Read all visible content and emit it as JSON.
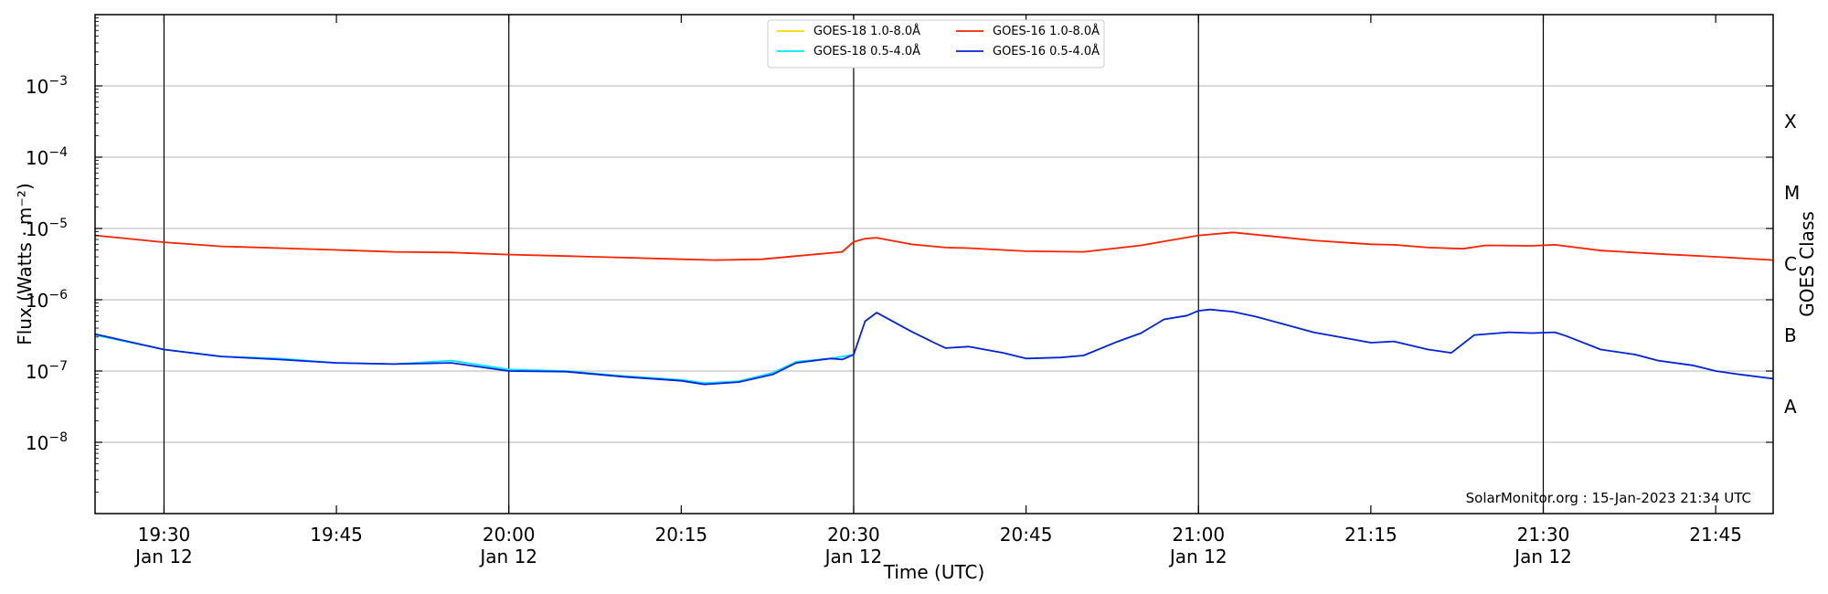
{
  "chart_data": {
    "type": "line",
    "xlabel": "Time (UTC)",
    "ylabel": "Flux (Watts · m⁻²)",
    "y2label": "GOES Class",
    "yscale": "log",
    "ylim": [
      1e-09,
      0.01
    ],
    "xlim": [
      "19:24",
      "21:50"
    ],
    "x_ticks": [
      {
        "t": "19:30",
        "label": "19:30",
        "sub": "Jan 12"
      },
      {
        "t": "19:45",
        "label": "19:45",
        "sub": ""
      },
      {
        "t": "20:00",
        "label": "20:00",
        "sub": "Jan 12"
      },
      {
        "t": "20:15",
        "label": "20:15",
        "sub": ""
      },
      {
        "t": "20:30",
        "label": "20:30",
        "sub": "Jan 12"
      },
      {
        "t": "20:45",
        "label": "20:45",
        "sub": ""
      },
      {
        "t": "21:00",
        "label": "21:00",
        "sub": "Jan 12"
      },
      {
        "t": "21:15",
        "label": "21:15",
        "sub": ""
      },
      {
        "t": "21:30",
        "label": "21:30",
        "sub": "Jan 12"
      },
      {
        "t": "21:45",
        "label": "21:45",
        "sub": ""
      }
    ],
    "y_ticks": [
      {
        "v": 1e-08,
        "base": "10",
        "exp": "−8"
      },
      {
        "v": 1e-07,
        "base": "10",
        "exp": "−7"
      },
      {
        "v": 1e-06,
        "base": "10",
        "exp": "−6"
      },
      {
        "v": 1e-05,
        "base": "10",
        "exp": "−5"
      },
      {
        "v": 0.0001,
        "base": "10",
        "exp": "−4"
      },
      {
        "v": 0.001,
        "base": "10",
        "exp": "−3"
      }
    ],
    "goes_classes": [
      {
        "label": "A",
        "v": 3.16e-08
      },
      {
        "label": "B",
        "v": 3.16e-07
      },
      {
        "label": "C",
        "v": 3.16e-06
      },
      {
        "label": "M",
        "v": 3.16e-05
      },
      {
        "label": "X",
        "v": 0.000316
      }
    ],
    "vlines": [
      "19:30",
      "20:00",
      "20:30",
      "21:00",
      "21:30"
    ],
    "grid": true,
    "legend_position": "top-center",
    "series": [
      {
        "name": "GOES-18 1.0-8.0Å",
        "color": "#ffd700",
        "x": [],
        "y": []
      },
      {
        "name": "GOES-18 0.5-4.0Å",
        "color": "#00e5ff",
        "x": [
          "19:24",
          "19:30",
          "19:35",
          "19:40",
          "19:45",
          "19:50",
          "19:55",
          "20:00",
          "20:05",
          "20:10",
          "20:15",
          "20:17",
          "20:20",
          "20:23",
          "20:25",
          "20:28",
          "20:30"
        ],
        "y": [
          3.2e-07,
          2e-07,
          1.6e-07,
          1.5e-07,
          1.3e-07,
          1.25e-07,
          1.4e-07,
          1.05e-07,
          1e-07,
          8.5e-08,
          7.5e-08,
          6.8e-08,
          7.2e-08,
          9.5e-08,
          1.35e-07,
          1.5e-07,
          1.7e-07
        ]
      },
      {
        "name": "GOES-16 1.0-8.0Å",
        "color": "#ff2200",
        "x": [
          "19:24",
          "19:30",
          "19:35",
          "19:40",
          "19:45",
          "19:50",
          "19:55",
          "20:00",
          "20:05",
          "20:10",
          "20:15",
          "20:18",
          "20:22",
          "20:25",
          "20:29",
          "20:30",
          "20:31",
          "20:32",
          "20:35",
          "20:38",
          "20:40",
          "20:45",
          "20:50",
          "20:55",
          "21:00",
          "21:03",
          "21:07",
          "21:10",
          "21:15",
          "21:17",
          "21:20",
          "21:23",
          "21:25",
          "21:29",
          "21:31",
          "21:35",
          "21:40",
          "21:45",
          "21:50"
        ],
        "y": [
          8e-06,
          6.4e-06,
          5.6e-06,
          5.3e-06,
          5e-06,
          4.7e-06,
          4.6e-06,
          4.3e-06,
          4.1e-06,
          3.9e-06,
          3.7e-06,
          3.6e-06,
          3.7e-06,
          4.1e-06,
          4.7e-06,
          6.5e-06,
          7.2e-06,
          7.4e-06,
          6e-06,
          5.4e-06,
          5.3e-06,
          4.8e-06,
          4.7e-06,
          5.8e-06,
          8e-06,
          8.8e-06,
          7.6e-06,
          6.8e-06,
          6e-06,
          5.9e-06,
          5.4e-06,
          5.2e-06,
          5.8e-06,
          5.7e-06,
          5.9e-06,
          4.9e-06,
          4.4e-06,
          4e-06,
          3.6e-06
        ]
      },
      {
        "name": "GOES-16 0.5-4.0Å",
        "color": "#0022dd",
        "x": [
          "19:24",
          "19:30",
          "19:35",
          "19:40",
          "19:45",
          "19:50",
          "19:55",
          "20:00",
          "20:05",
          "20:10",
          "20:15",
          "20:17",
          "20:20",
          "20:23",
          "20:25",
          "20:28",
          "20:29",
          "20:30",
          "20:31",
          "20:32",
          "20:35",
          "20:37",
          "20:38",
          "20:40",
          "20:43",
          "20:45",
          "20:48",
          "20:50",
          "20:53",
          "20:55",
          "20:57",
          "20:59",
          "21:00",
          "21:01",
          "21:03",
          "21:05",
          "21:10",
          "21:15",
          "21:17",
          "21:20",
          "21:22",
          "21:24",
          "21:27",
          "21:29",
          "21:31",
          "21:32",
          "21:35",
          "21:38",
          "21:40",
          "21:43",
          "21:45",
          "21:47",
          "21:50"
        ],
        "y": [
          3.3e-07,
          2e-07,
          1.6e-07,
          1.45e-07,
          1.3e-07,
          1.25e-07,
          1.3e-07,
          1e-07,
          9.8e-08,
          8.3e-08,
          7.3e-08,
          6.5e-08,
          7e-08,
          9e-08,
          1.3e-07,
          1.5e-07,
          1.45e-07,
          1.7e-07,
          5e-07,
          6.6e-07,
          3.6e-07,
          2.5e-07,
          2.1e-07,
          2.2e-07,
          1.8e-07,
          1.5e-07,
          1.55e-07,
          1.65e-07,
          2.6e-07,
          3.4e-07,
          5.3e-07,
          6e-07,
          7e-07,
          7.3e-07,
          6.8e-07,
          5.8e-07,
          3.5e-07,
          2.5e-07,
          2.6e-07,
          2e-07,
          1.8e-07,
          3.2e-07,
          3.5e-07,
          3.4e-07,
          3.5e-07,
          3.1e-07,
          2e-07,
          1.7e-07,
          1.4e-07,
          1.2e-07,
          1e-07,
          9e-08,
          7.8e-08
        ]
      }
    ]
  },
  "footer": {
    "credit": "SolarMonitor.org : 15-Jan-2023 21:34 UTC"
  }
}
